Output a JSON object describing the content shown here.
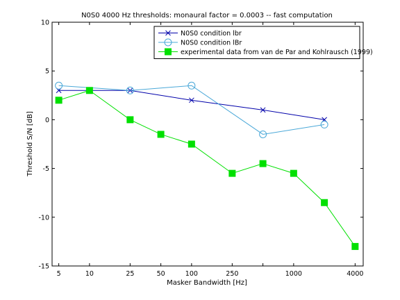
{
  "chart_data": {
    "type": "line",
    "title": "N0S0 4000 Hz thresholds: monaural factor = 0.0003 -- fast computation",
    "xlabel": "Masker Bandwidth [Hz]",
    "ylabel": "Threshold S/N [dB]",
    "x_scale": "log",
    "xlim": [
      4.3,
      4800
    ],
    "ylim": [
      -15,
      10
    ],
    "x_ticks": [
      5,
      10,
      25,
      50,
      100,
      250,
      500,
      1000,
      4000
    ],
    "x_tick_labels": [
      "5",
      "10",
      "25",
      "50",
      "100",
      "250",
      "",
      "1000",
      "4000"
    ],
    "y_ticks": [
      10,
      5,
      0,
      -5,
      -10,
      -15
    ],
    "y_tick_labels": [
      "10",
      "5",
      "0",
      "-5",
      "-10",
      "-15"
    ],
    "grid": false,
    "legend_position": "top-right",
    "series": [
      {
        "name": "N0S0 condition lbr",
        "color": "#0000aa",
        "marker": "x",
        "x": [
          5,
          10,
          25,
          100,
          500,
          2000
        ],
        "y": [
          3,
          3,
          3,
          2,
          1,
          0
        ]
      },
      {
        "name": "N0S0 condition lBr",
        "color": "#4aa8d8",
        "marker": "circle",
        "x": [
          5,
          25,
          100,
          500,
          2000
        ],
        "y": [
          3.5,
          3,
          3.5,
          -1.5,
          -0.5
        ]
      },
      {
        "name": "experimental data from van de Par and Kohlrausch (1999)",
        "color": "#00e000",
        "marker": "square",
        "x": [
          5,
          10,
          25,
          50,
          100,
          250,
          500,
          1000,
          2000,
          4000
        ],
        "y": [
          2,
          3,
          0,
          -1.5,
          -2.5,
          -5.5,
          -4.5,
          -5.5,
          -8.5,
          -13
        ]
      }
    ]
  }
}
